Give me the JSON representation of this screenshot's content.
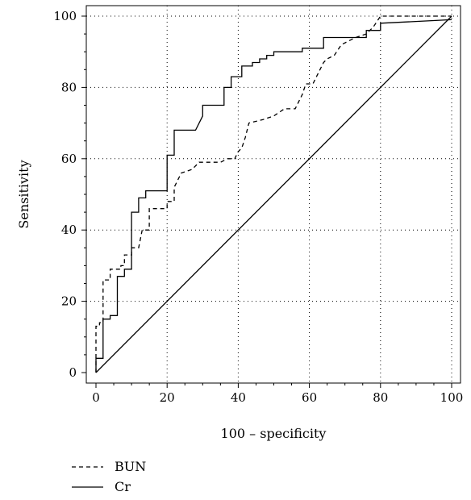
{
  "chart_data": {
    "type": "line",
    "xlabel": "100 – specificity",
    "ylabel": "Sensitivity",
    "xlim": [
      0,
      100
    ],
    "ylim": [
      0,
      100
    ],
    "xticks": [
      0,
      20,
      40,
      60,
      80,
      100
    ],
    "yticks": [
      0,
      20,
      40,
      60,
      80,
      100
    ],
    "grid": true,
    "legend_position": "bottom-left",
    "series": [
      {
        "name": "BUN",
        "line_style": "dashed",
        "color": "#000000",
        "x": [
          0,
          0,
          1,
          1,
          2,
          2,
          4,
          4,
          7,
          7,
          8,
          8,
          10,
          10,
          12,
          13,
          15,
          15,
          20,
          20,
          22,
          22,
          24,
          27,
          29,
          32,
          35,
          37,
          39,
          40,
          41,
          42,
          43,
          47,
          50,
          53,
          55,
          56,
          57,
          58,
          59,
          61,
          62,
          64,
          65,
          67,
          69,
          71,
          73,
          76,
          78,
          80,
          82,
          90,
          96,
          100
        ],
        "y": [
          0,
          13,
          13,
          14,
          14,
          26,
          26,
          29,
          29,
          30,
          30,
          33,
          33,
          35,
          35,
          40,
          40,
          46,
          46,
          48,
          48,
          52,
          56,
          57,
          59,
          59,
          59,
          60,
          60,
          62,
          63,
          66,
          70,
          71,
          72,
          74,
          74,
          74,
          76,
          78,
          81,
          81,
          83,
          87,
          88,
          89,
          92,
          93,
          94,
          95,
          97,
          100,
          100,
          100,
          100,
          100
        ]
      },
      {
        "name": "Cr",
        "line_style": "solid",
        "color": "#000000",
        "x": [
          0,
          0,
          2,
          2,
          4,
          4,
          6,
          6,
          8,
          8,
          10,
          10,
          12,
          12,
          14,
          14,
          20,
          20,
          22,
          22,
          28,
          30,
          30,
          36,
          36,
          38,
          38,
          41,
          41,
          44,
          44,
          46,
          46,
          48,
          48,
          50,
          50,
          58,
          58,
          64,
          64,
          76,
          76,
          80,
          80,
          100
        ],
        "y": [
          0,
          4,
          4,
          15,
          15,
          16,
          16,
          27,
          27,
          29,
          29,
          45,
          45,
          49,
          49,
          51,
          51,
          61,
          61,
          68,
          68,
          72,
          75,
          75,
          80,
          80,
          83,
          83,
          86,
          86,
          87,
          87,
          88,
          88,
          89,
          89,
          90,
          90,
          91,
          91,
          94,
          94,
          96,
          96,
          98,
          99
        ]
      },
      {
        "name": "",
        "line_style": "solid",
        "color": "#000000",
        "x": [
          0,
          100
        ],
        "y": [
          0,
          100
        ]
      }
    ]
  }
}
